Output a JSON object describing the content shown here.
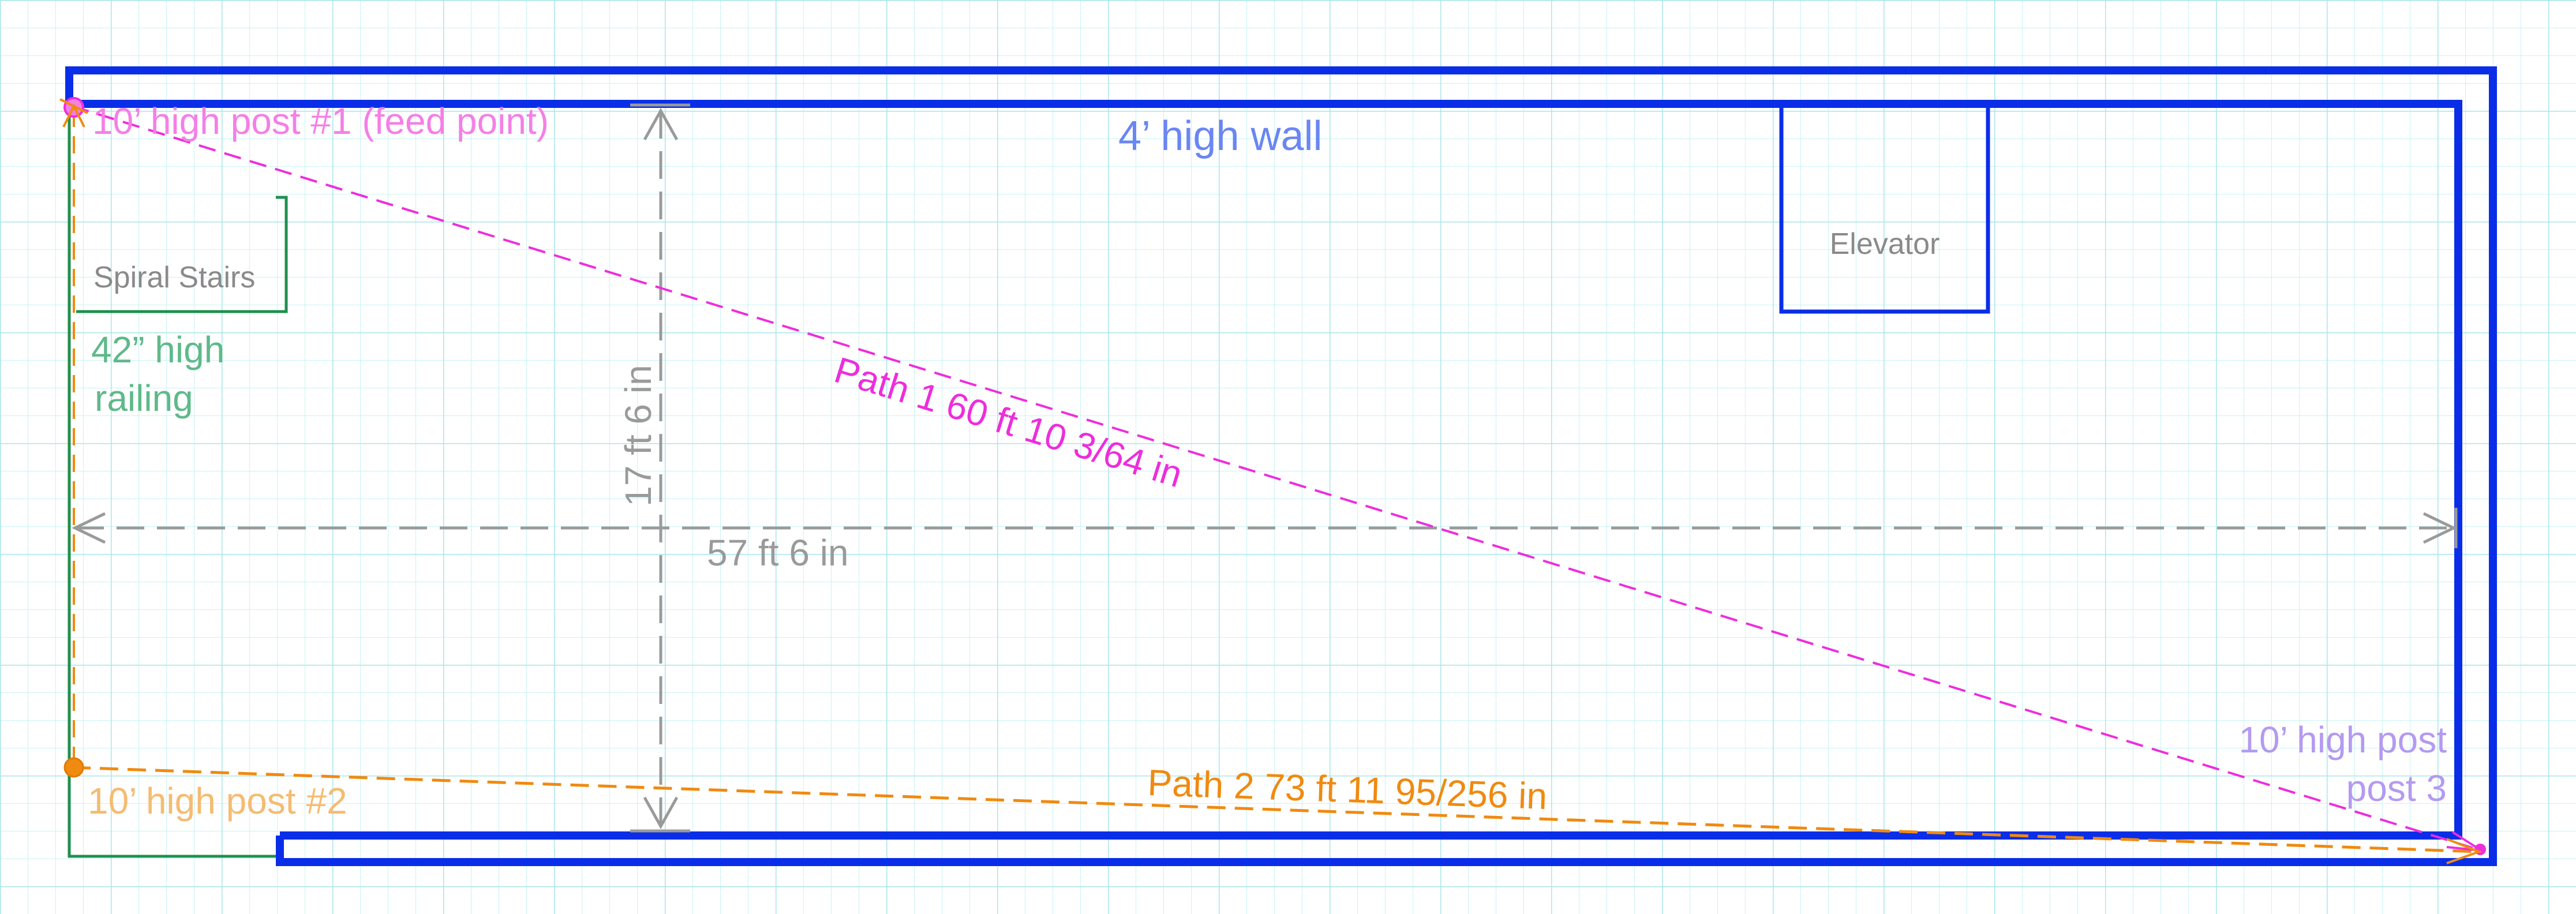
{
  "colors": {
    "grid": "#bfeff0",
    "wall": "#0a2ee8",
    "railing": "#1f8f4e",
    "dimension": "#9a9a9a",
    "path1": "#ee2ddc",
    "path2": "#f08a10",
    "post1_label": "#f47fe6",
    "post2_label": "#f4bc72",
    "post3_label": "#b49af0",
    "wall_label": "#6a86f2",
    "railing_label": "#5fb98a",
    "stairs_label": "#8a8a8a",
    "elevator_label": "#8a8a8a"
  },
  "labels": {
    "post1": "10’ high post #1 (feed point)",
    "post2": "10’ high post #2",
    "post3_line1": "10’ high post",
    "post3_line2": "post 3",
    "wall": "4’ high wall",
    "elevator": "Elevator",
    "stairs": "Spiral Stairs",
    "railing_line1": "42” high",
    "railing_line2": "railing",
    "dim_height": "17 ft 6 in",
    "dim_width": "57 ft 6 in",
    "path1": "Path 1 60 ft 10 3/64 in",
    "path2": "Path 2 73 ft 11 95/256 in"
  }
}
